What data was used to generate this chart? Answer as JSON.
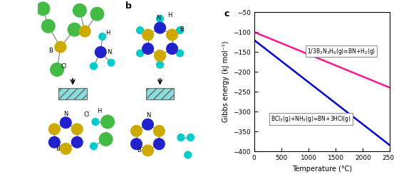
{
  "title_c": "c",
  "xlabel": "Temperature (°C)",
  "ylabel": "Gibbs energy (kJ mol⁻¹)",
  "xlim": [
    0,
    2500
  ],
  "ylim": [
    -400,
    -50
  ],
  "yticks": [
    -400,
    -350,
    -300,
    -250,
    -200,
    -150,
    -100,
    -50
  ],
  "xticks": [
    0,
    500,
    1000,
    1500,
    2000,
    2500
  ],
  "line1": {
    "x": [
      0,
      2500
    ],
    "y": [
      -100,
      -240
    ],
    "color": "#ff1493",
    "linewidth": 1.8
  },
  "line2": {
    "x": [
      0,
      2500
    ],
    "y": [
      -120,
      -385
    ],
    "color": "#0000cd",
    "linewidth": 1.8
  },
  "ann1_x": 1600,
  "ann1_y": -148,
  "ann2_x": 1050,
  "ann2_y": -318,
  "atom_colors": {
    "B": "#ccaa00",
    "N": "#2222cc",
    "Cl": "#44bb44",
    "H": "#00cccc"
  },
  "figure_width": 5.53,
  "figure_height": 2.45,
  "dpi": 100
}
